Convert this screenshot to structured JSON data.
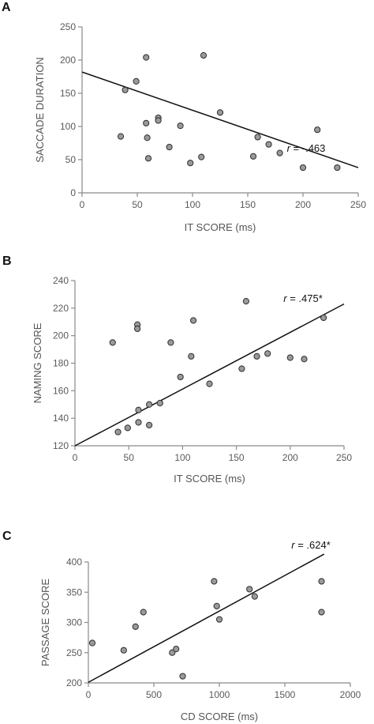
{
  "chart_data": [
    {
      "type": "scatter",
      "panel": "A",
      "xlabel": "IT SCORE (ms)",
      "ylabel": "SACCADE DURATION",
      "xlim": [
        0,
        250
      ],
      "ylim": [
        0,
        250
      ],
      "xticks": [
        0,
        50,
        100,
        150,
        200,
        250
      ],
      "yticks": [
        0,
        50,
        100,
        150,
        200,
        250
      ],
      "points": [
        {
          "x": 35,
          "y": 85
        },
        {
          "x": 39,
          "y": 155
        },
        {
          "x": 49,
          "y": 168
        },
        {
          "x": 58,
          "y": 204
        },
        {
          "x": 58,
          "y": 105
        },
        {
          "x": 59,
          "y": 83
        },
        {
          "x": 60,
          "y": 52
        },
        {
          "x": 69,
          "y": 113
        },
        {
          "x": 69,
          "y": 109
        },
        {
          "x": 79,
          "y": 69
        },
        {
          "x": 89,
          "y": 101
        },
        {
          "x": 98,
          "y": 45
        },
        {
          "x": 108,
          "y": 54
        },
        {
          "x": 110,
          "y": 207
        },
        {
          "x": 125,
          "y": 121
        },
        {
          "x": 155,
          "y": 55
        },
        {
          "x": 159,
          "y": 84
        },
        {
          "x": 169,
          "y": 73
        },
        {
          "x": 179,
          "y": 60
        },
        {
          "x": 200,
          "y": 38
        },
        {
          "x": 213,
          "y": 95
        },
        {
          "x": 231,
          "y": 38
        }
      ],
      "fit_line": {
        "x": [
          0,
          250
        ],
        "y": [
          182,
          38
        ]
      },
      "r_label": {
        "prefix": "r",
        "value": " = -.463"
      }
    },
    {
      "type": "scatter",
      "panel": "B",
      "xlabel": "IT SCORE (ms)",
      "ylabel": "NAMING SCORE",
      "xlim": [
        0,
        250
      ],
      "ylim": [
        120,
        240
      ],
      "xticks": [
        0,
        50,
        100,
        150,
        200,
        250
      ],
      "yticks": [
        120,
        140,
        160,
        180,
        200,
        220,
        240
      ],
      "points": [
        {
          "x": 35,
          "y": 195
        },
        {
          "x": 40,
          "y": 130
        },
        {
          "x": 49,
          "y": 133
        },
        {
          "x": 58,
          "y": 208
        },
        {
          "x": 58,
          "y": 205
        },
        {
          "x": 59,
          "y": 146
        },
        {
          "x": 59,
          "y": 137
        },
        {
          "x": 69,
          "y": 150
        },
        {
          "x": 69,
          "y": 135
        },
        {
          "x": 79,
          "y": 151
        },
        {
          "x": 89,
          "y": 195
        },
        {
          "x": 98,
          "y": 170
        },
        {
          "x": 108,
          "y": 185
        },
        {
          "x": 110,
          "y": 211
        },
        {
          "x": 125,
          "y": 165
        },
        {
          "x": 155,
          "y": 176
        },
        {
          "x": 159,
          "y": 225
        },
        {
          "x": 169,
          "y": 185
        },
        {
          "x": 179,
          "y": 187
        },
        {
          "x": 200,
          "y": 184
        },
        {
          "x": 213,
          "y": 183
        },
        {
          "x": 231,
          "y": 213
        }
      ],
      "fit_line": {
        "x": [
          0,
          250
        ],
        "y": [
          120,
          223
        ]
      },
      "r_label": {
        "prefix": "r",
        "value": " = .475*"
      }
    },
    {
      "type": "scatter",
      "panel": "C",
      "xlabel": "CD SCORE (ms)",
      "ylabel": "PASSAGE SCORE",
      "xlim": [
        0,
        2000
      ],
      "ylim": [
        200,
        400
      ],
      "xticks": [
        0,
        500,
        1000,
        1500,
        2000
      ],
      "yticks": [
        200,
        250,
        300,
        350,
        400
      ],
      "points": [
        {
          "x": 30,
          "y": 266
        },
        {
          "x": 270,
          "y": 254
        },
        {
          "x": 360,
          "y": 293
        },
        {
          "x": 420,
          "y": 317
        },
        {
          "x": 640,
          "y": 250
        },
        {
          "x": 670,
          "y": 256
        },
        {
          "x": 720,
          "y": 211
        },
        {
          "x": 960,
          "y": 368
        },
        {
          "x": 980,
          "y": 327
        },
        {
          "x": 1000,
          "y": 305
        },
        {
          "x": 1230,
          "y": 355
        },
        {
          "x": 1270,
          "y": 343
        },
        {
          "x": 1780,
          "y": 368
        },
        {
          "x": 1780,
          "y": 317
        }
      ],
      "fit_line": {
        "x": [
          0,
          1800
        ],
        "y": [
          201,
          413
        ]
      },
      "r_label": {
        "prefix": "r",
        "value": " = .624*"
      }
    }
  ]
}
